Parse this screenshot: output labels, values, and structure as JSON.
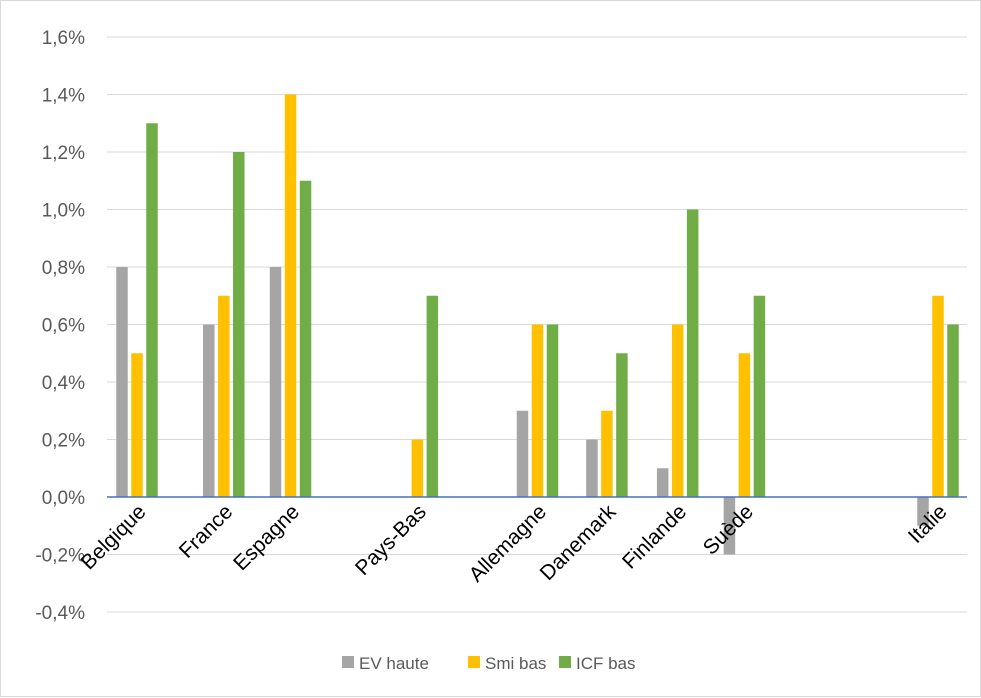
{
  "chart_data": {
    "type": "bar",
    "title": "",
    "xlabel": "",
    "ylabel": "",
    "categories": [
      "Belgique",
      "France",
      "Espagne",
      "Pays-Bas",
      "Allemagne",
      "Danemark",
      "Finlande",
      "Suède",
      "Italie"
    ],
    "series": [
      {
        "name": "EV haute",
        "color": "#a5a5a5",
        "values": [
          0.008,
          0.006,
          0.008,
          null,
          0.003,
          0.002,
          0.001,
          -0.002,
          -0.001
        ]
      },
      {
        "name": "Smi bas",
        "color": "#ffc000",
        "values": [
          0.005,
          0.007,
          0.014,
          0.002,
          0.006,
          0.003,
          0.006,
          0.005,
          0.007
        ]
      },
      {
        "name": "ICF bas",
        "color": "#70ad47",
        "values": [
          0.013,
          0.012,
          0.011,
          0.007,
          0.006,
          0.005,
          0.01,
          0.007,
          0.006
        ]
      }
    ],
    "ylim": [
      -0.004,
      0.016
    ],
    "yticks": [
      -0.004,
      -0.002,
      0,
      0.002,
      0.004,
      0.006,
      0.008,
      0.01,
      0.012,
      0.014,
      0.016
    ],
    "ytick_labels": [
      "-0,4%",
      "-0,2%",
      "0,0%",
      "0,2%",
      "0,4%",
      "0,6%",
      "0,8%",
      "1,0%",
      "1,2%",
      "1,4%",
      "1,6%"
    ],
    "category_positions": [
      0,
      3.25,
      5.75,
      10.5,
      15,
      17.6,
      20.25,
      22.75,
      30
    ],
    "grid": true,
    "legend_position": "bottom",
    "colors": {
      "grid": "#d9d9d9",
      "zero_line": "#4472c4",
      "tick_text": "#595959",
      "category_text": "#000000"
    }
  }
}
